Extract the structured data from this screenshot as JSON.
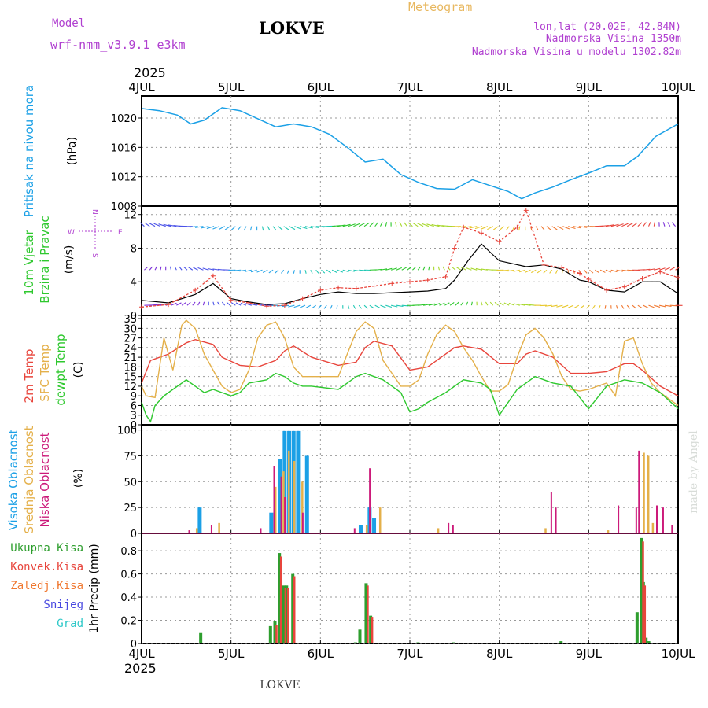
{
  "header": {
    "model_label": "Model",
    "model_name": "wrf-nmm_v3.9.1  e3km",
    "location": "LOKVE",
    "title": "Meteogram",
    "coords": "lon,lat (20.02E, 42.84N)",
    "altitude": "Nadmorska Visina 1350m",
    "model_altitude": "Nadmorska Visina u modelu 1302.82m",
    "year": "2025",
    "footer_location": "LOKVE",
    "credit": "made by Angel"
  },
  "colors": {
    "pressure": "#1ba0e6",
    "temp2m": "#e8453c",
    "sfc": "#e4b04a",
    "dew": "#2ec82e",
    "high": "#1ba0e6",
    "mid": "#e4b04a",
    "low": "#cc1a7a",
    "total": "#2e9e2e",
    "conv": "#e8453c",
    "frz": "#f07830",
    "snow": "#4848e0",
    "hail": "#2ec8c8",
    "wind_label": "#2ec82e",
    "compass": "#b040d0",
    "credit": "#d8dcd8",
    "title": "#e8b860",
    "info": "#b040d0"
  },
  "chart_data": [
    {
      "type": "line",
      "name": "pressure",
      "title": "Pritisak na nivou mora",
      "ylabel": "(hPa)",
      "ylim": [
        1008,
        1023
      ],
      "yticks": [
        1008,
        1012,
        1016,
        1020
      ],
      "x_unit": "days since 4JUL 00UTC",
      "xlim": [
        0,
        6
      ],
      "x_tick_labels": [
        "4JUL",
        "5JUL",
        "6JUL",
        "7JUL",
        "8JUL",
        "9JUL",
        "10JUL"
      ],
      "series": [
        {
          "name": "Pritisak na nivou mora",
          "x": [
            0,
            0.2,
            0.4,
            0.55,
            0.7,
            0.9,
            1.1,
            1.3,
            1.5,
            1.7,
            1.9,
            2.1,
            2.3,
            2.5,
            2.7,
            2.9,
            3.1,
            3.3,
            3.5,
            3.7,
            3.9,
            4.1,
            4.25,
            4.4,
            4.6,
            4.8,
            5.0,
            5.2,
            5.4,
            5.55,
            5.75,
            6.0
          ],
          "values": [
            1021.3,
            1021.0,
            1020.4,
            1019.2,
            1019.7,
            1021.4,
            1021.0,
            1019.9,
            1018.8,
            1019.2,
            1018.8,
            1017.8,
            1016.0,
            1014.0,
            1014.4,
            1012.3,
            1011.2,
            1010.4,
            1010.3,
            1011.6,
            1010.8,
            1010.0,
            1009.0,
            1009.8,
            1010.6,
            1011.6,
            1012.5,
            1013.5,
            1013.5,
            1014.8,
            1017.5,
            1019.2
          ]
        }
      ]
    },
    {
      "type": "line",
      "name": "wind",
      "title": "10m Vjetar Brzina i Pravac",
      "ylabel": "(m/s)",
      "ylim": [
        0,
        13
      ],
      "yticks": [
        0,
        4,
        8,
        12
      ],
      "compass": {
        "north": "N",
        "south": "S",
        "west": "W",
        "east": "E"
      },
      "series": [
        {
          "name": "speed",
          "x": [
            0,
            0.3,
            0.6,
            0.8,
            1.0,
            1.2,
            1.4,
            1.6,
            1.8,
            2.0,
            2.2,
            2.4,
            2.6,
            2.8,
            3.0,
            3.2,
            3.4,
            3.5,
            3.65,
            3.8,
            4.0,
            4.3,
            4.5,
            4.7,
            4.9,
            5.0,
            5.2,
            5.4,
            5.6,
            5.8,
            6.0
          ],
          "values": [
            1.8,
            1.5,
            2.5,
            3.8,
            2.0,
            1.6,
            1.3,
            1.4,
            2.0,
            2.5,
            2.8,
            2.6,
            2.6,
            2.7,
            2.8,
            2.9,
            3.2,
            4.2,
            6.5,
            8.5,
            6.5,
            5.8,
            6.0,
            5.5,
            4.2,
            4.0,
            3.0,
            2.8,
            4.0,
            4.0,
            2.6
          ]
        },
        {
          "name": "gust",
          "x": [
            0,
            0.3,
            0.6,
            0.8,
            1.0,
            1.2,
            1.4,
            1.6,
            1.8,
            2.0,
            2.2,
            2.4,
            2.6,
            2.8,
            3.0,
            3.2,
            3.4,
            3.5,
            3.6,
            3.8,
            4.0,
            4.2,
            4.3,
            4.5,
            4.7,
            4.9,
            5.0,
            5.2,
            5.4,
            5.6,
            5.8,
            6.0
          ],
          "values": [
            1.0,
            1.3,
            3.0,
            4.7,
            1.8,
            1.5,
            1.1,
            1.2,
            2.0,
            3.0,
            3.3,
            3.2,
            3.5,
            3.8,
            4.0,
            4.2,
            4.6,
            8.0,
            10.5,
            9.8,
            8.8,
            10.5,
            12.5,
            6.0,
            5.7,
            5.0,
            4.3,
            3.0,
            3.4,
            4.4,
            5.2,
            4.5
          ]
        }
      ]
    },
    {
      "type": "line",
      "name": "temperature",
      "title": "2m Temp, SFC Temp, dewpt Temp",
      "ylabel": "(C)",
      "ylim": [
        0,
        34
      ],
      "yticks": [
        0,
        3,
        6,
        9,
        12,
        15,
        18,
        21,
        24,
        27,
        30,
        33
      ],
      "series": [
        {
          "name": "2m Temp",
          "x": [
            0,
            0.1,
            0.3,
            0.5,
            0.6,
            0.8,
            0.9,
            1.1,
            1.3,
            1.5,
            1.6,
            1.7,
            1.9,
            2.2,
            2.4,
            2.5,
            2.6,
            2.8,
            3.0,
            3.2,
            3.4,
            3.5,
            3.6,
            3.8,
            4.0,
            4.2,
            4.3,
            4.4,
            4.6,
            4.8,
            5.0,
            5.2,
            5.4,
            5.5,
            5.6,
            5.8,
            6.0
          ],
          "values": [
            13,
            20,
            22,
            25.5,
            26.5,
            25,
            21,
            18.5,
            18,
            20,
            23,
            24.5,
            21,
            18.5,
            19.5,
            24,
            26,
            24.5,
            17,
            18,
            22,
            24,
            24.5,
            23.5,
            19,
            19,
            22,
            23,
            21,
            16,
            16,
            16.5,
            19,
            19,
            17,
            12,
            9
          ]
        },
        {
          "name": "SFC Temp",
          "x": [
            0,
            0.05,
            0.15,
            0.25,
            0.35,
            0.45,
            0.5,
            0.6,
            0.7,
            0.8,
            0.9,
            1.0,
            1.1,
            1.2,
            1.3,
            1.4,
            1.5,
            1.6,
            1.7,
            1.8,
            1.9,
            2.2,
            2.3,
            2.4,
            2.5,
            2.6,
            2.7,
            2.8,
            2.9,
            3.0,
            3.1,
            3.2,
            3.3,
            3.4,
            3.5,
            3.6,
            3.7,
            3.8,
            3.9,
            4.0,
            4.1,
            4.2,
            4.3,
            4.4,
            4.5,
            4.6,
            4.7,
            4.8,
            4.9,
            5.0,
            5.1,
            5.2,
            5.3,
            5.4,
            5.5,
            5.6,
            5.7,
            5.8,
            6.0
          ],
          "values": [
            12,
            9,
            8.5,
            27,
            17,
            31,
            32.5,
            30,
            22,
            17,
            12,
            10,
            11,
            17,
            27,
            31,
            32,
            27,
            18,
            15,
            15,
            15,
            22,
            29,
            32,
            30,
            20,
            16,
            12,
            12,
            14,
            22,
            28,
            31,
            29,
            24,
            20,
            15,
            10.5,
            10.5,
            12.5,
            21,
            28,
            30,
            27,
            22,
            15,
            11,
            10.5,
            11,
            12,
            13,
            9,
            26,
            27,
            19,
            13,
            10,
            6
          ]
        },
        {
          "name": "dewpt Temp",
          "x": [
            0,
            0.05,
            0.1,
            0.15,
            0.25,
            0.35,
            0.45,
            0.5,
            0.6,
            0.7,
            0.8,
            0.9,
            1.0,
            1.1,
            1.2,
            1.4,
            1.5,
            1.6,
            1.7,
            1.8,
            1.9,
            2.2,
            2.3,
            2.4,
            2.5,
            2.6,
            2.7,
            2.8,
            2.9,
            3.0,
            3.1,
            3.2,
            3.4,
            3.6,
            3.8,
            3.9,
            4.0,
            4.2,
            4.4,
            4.5,
            4.6,
            4.8,
            5.0,
            5.2,
            5.4,
            5.6,
            5.8,
            6.0
          ],
          "values": [
            7,
            3,
            1,
            6,
            9,
            11,
            13,
            14,
            12,
            10,
            11,
            10,
            9,
            10,
            13,
            14,
            16,
            15,
            13,
            12,
            12,
            11,
            13,
            15,
            16,
            15,
            14,
            12,
            10,
            4,
            5,
            7,
            10,
            14,
            13,
            11,
            3,
            11,
            15,
            14,
            13,
            12,
            5,
            12,
            14,
            13,
            10,
            5
          ]
        }
      ]
    },
    {
      "type": "bar",
      "name": "cloud",
      "title": "Visoka Oblacnost, Srednja Oblacnost, Niska Oblacnost",
      "ylabel": "(%)",
      "ylim": [
        0,
        105
      ],
      "yticks": [
        0,
        25,
        50,
        75,
        100
      ],
      "series": [
        {
          "name": "Visoka Oblacnost",
          "x": [
            0.65,
            1.45,
            1.55,
            1.6,
            1.65,
            1.7,
            1.75,
            1.85,
            2.45,
            2.55,
            2.6
          ],
          "values": [
            25,
            20,
            72,
            99,
            99,
            99,
            99,
            75,
            8,
            25,
            15
          ]
        },
        {
          "name": "Srednja Oblacnost",
          "x": [
            0.6,
            0.85,
            1.48,
            1.57,
            1.63,
            1.69,
            1.78,
            2.5,
            2.65,
            3.3,
            4.5,
            5.2,
            5.6,
            5.65,
            5.7,
            5.75
          ],
          "values": [
            5,
            10,
            45,
            60,
            80,
            70,
            50,
            8,
            25,
            5,
            5,
            3,
            78,
            75,
            10,
            12
          ]
        },
        {
          "name": "Niska Oblacnost",
          "x": [
            0.55,
            0.8,
            1.35,
            1.5,
            1.58,
            1.62,
            1.82,
            2.4,
            2.57,
            3.45,
            3.5,
            4.6,
            4.65,
            5.35,
            5.55,
            5.58,
            5.78,
            5.85,
            5.95
          ],
          "values": [
            3,
            8,
            5,
            65,
            55,
            35,
            20,
            5,
            63,
            10,
            8,
            40,
            25,
            27,
            25,
            80,
            27,
            25,
            8
          ]
        }
      ]
    },
    {
      "type": "bar",
      "name": "precip",
      "title": "Ukupna Kisa, Konvek.Kisa, Zaledj.Kisa, Snijeg, Grad",
      "ylabel": "1hr Precip (mm)",
      "ylim": [
        0,
        0.95
      ],
      "yticks": [
        0,
        0.2,
        0.4,
        0.6,
        0.8
      ],
      "series": [
        {
          "name": "Ukupna Kisa",
          "x": [
            0.67,
            1.45,
            1.5,
            1.55,
            1.6,
            1.63,
            1.7,
            2.4,
            2.45,
            2.52,
            2.57,
            3.1,
            3.5,
            4.7,
            5.55,
            5.6,
            5.62,
            5.65,
            5.68
          ],
          "values": [
            0.09,
            0.15,
            0.19,
            0.78,
            0.5,
            0.5,
            0.6,
            0.01,
            0.12,
            0.52,
            0.24,
            0.01,
            0.01,
            0.02,
            0.27,
            0.91,
            0.53,
            0.05,
            0.02
          ]
        },
        {
          "name": "Konvek.Kisa",
          "x": [
            1.5,
            1.55,
            1.6,
            1.63,
            1.7,
            2.52,
            2.57,
            5.6,
            5.62
          ],
          "values": [
            0.16,
            0.75,
            0.48,
            0.48,
            0.58,
            0.5,
            0.23,
            0.88,
            0.5
          ]
        },
        {
          "name": "Zaledj.Kisa",
          "x": [],
          "values": []
        },
        {
          "name": "Snijeg",
          "x": [],
          "values": []
        },
        {
          "name": "Grad",
          "x": [],
          "values": []
        }
      ]
    }
  ]
}
